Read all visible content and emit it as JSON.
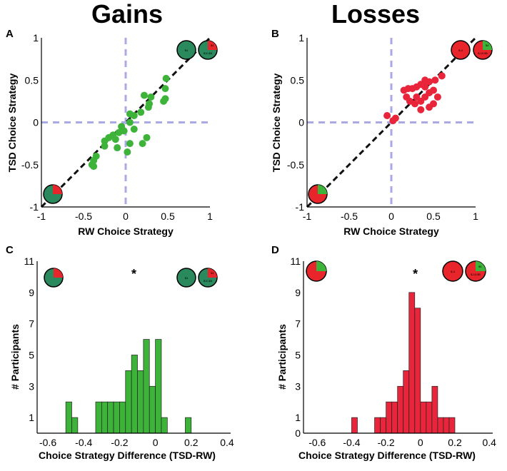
{
  "columns": {
    "gains_title": "Gains",
    "losses_title": "Losses"
  },
  "colors": {
    "gains": "#3db33a",
    "gains_dark": "#2a8a5e",
    "losses": "#e8253a",
    "pie_red": "#e8252a",
    "pie_green": "#3db33a",
    "ref": "#a9a9e6"
  },
  "chart_data": [
    {
      "panel": "A",
      "type": "scatter",
      "title": "Gains",
      "xlabel": "RW Choice Strategy",
      "ylabel": "TSD Choice Strategy",
      "xlim": [
        -1,
        1
      ],
      "ylim": [
        -1,
        1
      ],
      "xticks": [
        "-1",
        "-0.5",
        "0",
        "0.5",
        "1"
      ],
      "yticks": [
        "1",
        "0.5",
        "0",
        "-0.5",
        "-1"
      ],
      "pie_labels": [
        "$4",
        "$4",
        "$10,$5"
      ],
      "points": [
        [
          0.48,
          0.52
        ],
        [
          0.47,
          0.4
        ],
        [
          0.47,
          0.28
        ],
        [
          0.45,
          0.25
        ],
        [
          0.3,
          0.3
        ],
        [
          0.28,
          0.22
        ],
        [
          0.22,
          0.32
        ],
        [
          0.18,
          0.12
        ],
        [
          0.1,
          0.08
        ],
        [
          0.05,
          0.1
        ],
        [
          0.05,
          0.0
        ],
        [
          0.27,
          0.18
        ],
        [
          0.25,
          -0.18
        ],
        [
          0.2,
          -0.25
        ],
        [
          0.1,
          -0.08
        ],
        [
          0.05,
          -0.25
        ],
        [
          0.02,
          -0.35
        ],
        [
          -0.02,
          -0.1
        ],
        [
          -0.05,
          -0.05
        ],
        [
          -0.08,
          -0.12
        ],
        [
          -0.12,
          -0.2
        ],
        [
          -0.1,
          -0.3
        ],
        [
          -0.15,
          -0.15
        ],
        [
          -0.2,
          -0.18
        ],
        [
          -0.25,
          -0.22
        ],
        [
          -0.25,
          -0.28
        ],
        [
          -0.35,
          -0.4
        ],
        [
          -0.38,
          -0.45
        ],
        [
          -0.4,
          -0.5
        ],
        [
          -0.38,
          -0.52
        ]
      ],
      "diagonal": true,
      "reference_lines": [
        0
      ]
    },
    {
      "panel": "B",
      "type": "scatter",
      "title": "Losses",
      "xlabel": "RW Choice Strategy",
      "ylabel": "TSD Choice Strategy",
      "xlim": [
        -1,
        1
      ],
      "ylim": [
        -1,
        1
      ],
      "xticks": [
        "-1",
        "-0.5",
        "0",
        "0.5",
        "1"
      ],
      "yticks": [
        "1",
        "0.5",
        "0",
        "-0.5",
        "-1"
      ],
      "pie_labels": [
        "$-4",
        "$4",
        "$-10,$5"
      ],
      "points": [
        [
          0.6,
          0.55
        ],
        [
          0.52,
          0.5
        ],
        [
          0.45,
          0.48
        ],
        [
          0.4,
          0.5
        ],
        [
          0.35,
          0.45
        ],
        [
          0.3,
          0.42
        ],
        [
          0.25,
          0.4
        ],
        [
          0.2,
          0.4
        ],
        [
          0.15,
          0.38
        ],
        [
          0.18,
          0.3
        ],
        [
          0.22,
          0.25
        ],
        [
          0.28,
          0.22
        ],
        [
          0.35,
          0.25
        ],
        [
          0.4,
          0.3
        ],
        [
          0.45,
          0.35
        ],
        [
          0.5,
          0.38
        ],
        [
          0.55,
          0.3
        ],
        [
          0.5,
          0.22
        ],
        [
          0.45,
          0.18
        ],
        [
          0.35,
          0.15
        ],
        [
          0.3,
          0.3
        ],
        [
          0.4,
          0.42
        ],
        [
          0.05,
          0.05
        ],
        [
          0.02,
          0.02
        ],
        [
          -0.05,
          0.08
        ]
      ],
      "diagonal": true,
      "reference_lines": [
        0
      ]
    },
    {
      "panel": "C",
      "type": "bar",
      "xlabel": "Choice Strategy Difference (TSD-RW)",
      "ylabel": "# Participants",
      "xlim": [
        -0.66,
        0.42
      ],
      "ylim": [
        0,
        11
      ],
      "xticks": [
        "-0.6",
        "-0.4",
        "-0.2",
        "0",
        "0.2",
        "0.4"
      ],
      "yticks": [
        "11",
        "9",
        "7",
        "5",
        "3",
        "1"
      ],
      "annotation": "*",
      "annotation_x": -0.12,
      "pie_labels": [
        "$4",
        "$4",
        "$10,$5"
      ],
      "bin_width": 0.0333,
      "bins": [
        {
          "x": -0.5,
          "v": 2
        },
        {
          "x": -0.4667,
          "v": 1
        },
        {
          "x": -0.3333,
          "v": 2
        },
        {
          "x": -0.3,
          "v": 2
        },
        {
          "x": -0.2667,
          "v": 2
        },
        {
          "x": -0.2333,
          "v": 2
        },
        {
          "x": -0.2,
          "v": 2
        },
        {
          "x": -0.1667,
          "v": 4
        },
        {
          "x": -0.1333,
          "v": 5
        },
        {
          "x": -0.1,
          "v": 4
        },
        {
          "x": -0.0667,
          "v": 6
        },
        {
          "x": -0.0333,
          "v": 3
        },
        {
          "x": 0.0,
          "v": 6
        },
        {
          "x": 0.0333,
          "v": 1
        },
        {
          "x": 0.1667,
          "v": 1
        }
      ]
    },
    {
      "panel": "D",
      "type": "bar",
      "xlabel": "Choice Strategy Difference (TSD-RW)",
      "ylabel": "# Participants",
      "xlim": [
        -0.68,
        0.42
      ],
      "ylim": [
        0,
        11
      ],
      "xticks": [
        "-0.6",
        "-0.4",
        "-0.2",
        "0",
        "0.2",
        "0.4"
      ],
      "yticks": [
        "11",
        "9",
        "7",
        "5",
        "3",
        "1",
        "0"
      ],
      "annotation": "*",
      "annotation_x": -0.03,
      "pie_labels": [
        "$-4",
        "$4",
        "$-10,$5"
      ],
      "bin_width": 0.0333,
      "bins": [
        {
          "x": -0.4,
          "v": 1
        },
        {
          "x": -0.2667,
          "v": 1
        },
        {
          "x": -0.2333,
          "v": 1
        },
        {
          "x": -0.2,
          "v": 2
        },
        {
          "x": -0.1667,
          "v": 2
        },
        {
          "x": -0.1333,
          "v": 3
        },
        {
          "x": -0.1,
          "v": 4
        },
        {
          "x": -0.0667,
          "v": 9
        },
        {
          "x": -0.0333,
          "v": 8
        },
        {
          "x": 0.0,
          "v": 2
        },
        {
          "x": 0.0333,
          "v": 2
        },
        {
          "x": 0.0667,
          "v": 3
        },
        {
          "x": 0.1,
          "v": 1
        },
        {
          "x": 0.1333,
          "v": 1
        },
        {
          "x": 0.1667,
          "v": 1
        }
      ]
    }
  ]
}
